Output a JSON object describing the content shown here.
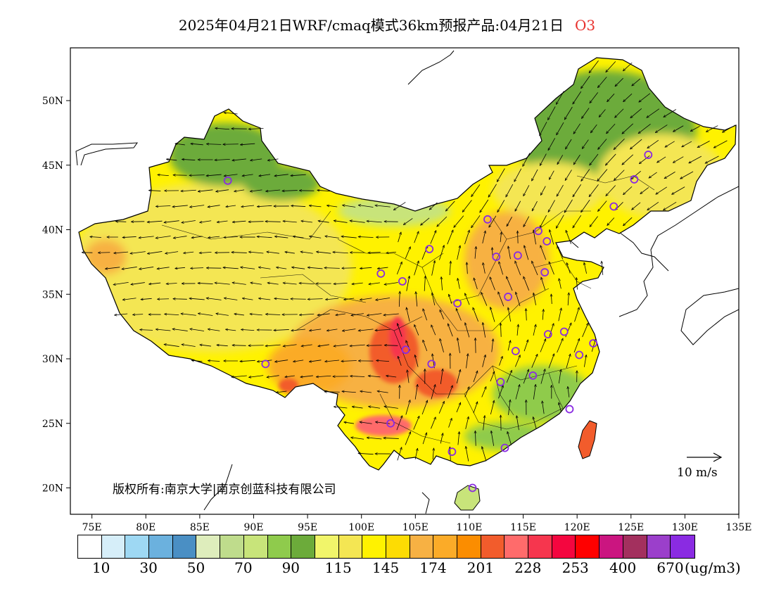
{
  "header": {
    "title": "2025年04月21日WRF/cmaq模式36km预报产品:04月21日",
    "species": "O3"
  },
  "map": {
    "lat_labels": [
      "50N",
      "45N",
      "40N",
      "35N",
      "30N",
      "25N",
      "20N"
    ],
    "lon_labels": [
      "75E",
      "80E",
      "85E",
      "90E",
      "95E",
      "100E",
      "105E",
      "110E",
      "115E",
      "120E",
      "125E",
      "130E",
      "135E"
    ],
    "copyright": "版权所有:南京大学|南京创蓝科技有限公司",
    "wind_scale_label": "10 m/s"
  },
  "legend": {
    "unit": "(ug/m3)",
    "labels": [
      "10",
      "30",
      "50",
      "70",
      "90",
      "115",
      "145",
      "174",
      "201",
      "228",
      "253",
      "400",
      "670"
    ],
    "colors": [
      "#ffffff",
      "#d6eef9",
      "#9ed8f3",
      "#6bb1de",
      "#4a8fc4",
      "#deedbc",
      "#bfdc8c",
      "#c8e47a",
      "#8fcb4c",
      "#6cab3a",
      "#f1f56a",
      "#f4e653",
      "#fff200",
      "#fddc03",
      "#f7b143",
      "#fbab28",
      "#fb8d00",
      "#f25c2c",
      "#ff6b6b",
      "#f6364e",
      "#f4063f",
      "#ff0000",
      "#cb1580",
      "#a3305e",
      "#9b3fcb",
      "#8a2be2"
    ]
  },
  "stations": [
    [
      87.6,
      43.8
    ],
    [
      101.8,
      36.6
    ],
    [
      103.8,
      36.0
    ],
    [
      106.3,
      38.5
    ],
    [
      108.9,
      34.3
    ],
    [
      111.7,
      40.8
    ],
    [
      112.5,
      37.9
    ],
    [
      114.5,
      38.0
    ],
    [
      116.4,
      39.9
    ],
    [
      117.2,
      39.1
    ],
    [
      117.0,
      36.7
    ],
    [
      113.6,
      34.8
    ],
    [
      104.1,
      30.7
    ],
    [
      106.5,
      29.6
    ],
    [
      91.1,
      29.6
    ],
    [
      102.7,
      25.0
    ],
    [
      108.4,
      22.8
    ],
    [
      110.3,
      20.0
    ],
    [
      113.3,
      23.1
    ],
    [
      112.9,
      28.2
    ],
    [
      114.3,
      30.6
    ],
    [
      115.9,
      28.7
    ],
    [
      117.3,
      31.9
    ],
    [
      118.8,
      32.1
    ],
    [
      120.2,
      30.3
    ],
    [
      121.5,
      31.2
    ],
    [
      119.3,
      26.1
    ],
    [
      123.4,
      41.8
    ],
    [
      125.3,
      43.9
    ],
    [
      126.6,
      45.8
    ]
  ]
}
